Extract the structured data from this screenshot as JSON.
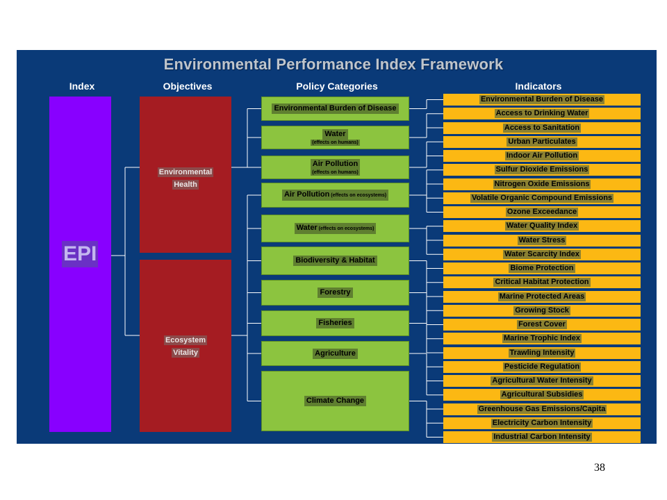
{
  "title": "Environmental Performance Index Framework",
  "headers": {
    "index": "Index",
    "objectives": "Objectives",
    "policy": "Policy Categories",
    "indicators": "Indicators"
  },
  "index_label": "EPI",
  "objectives": [
    {
      "line1": "Environmental",
      "line2": "Health"
    },
    {
      "line1": "Ecosystem",
      "line2": "Vitality"
    }
  ],
  "policy_categories": [
    {
      "main": "Environmental Burden of Disease",
      "sub": "",
      "inline": ""
    },
    {
      "main": "Water",
      "sub": "(effects on humans)",
      "inline": ""
    },
    {
      "main": "Air Pollution",
      "sub": "(effects on humans)",
      "inline": ""
    },
    {
      "main": "Air Pollution",
      "sub": "",
      "inline": "(effects on ecosystems)"
    },
    {
      "main": "Water",
      "sub": "",
      "inline": "(effects on ecosystems)"
    },
    {
      "main": "Biodiversity & Habitat",
      "sub": "",
      "inline": ""
    },
    {
      "main": "Forestry",
      "sub": "",
      "inline": ""
    },
    {
      "main": "Fisheries",
      "sub": "",
      "inline": ""
    },
    {
      "main": "Agriculture",
      "sub": "",
      "inline": ""
    },
    {
      "main": "Climate Change",
      "sub": "",
      "inline": ""
    }
  ],
  "indicators": [
    "Environmental Burden of Disease",
    "Access to Drinking Water",
    "Access to Sanitation",
    "Urban Particulates",
    "Indoor Air Pollution",
    "Sulfur Dioxide Emissions",
    "Nitrogen Oxide Emissions",
    "Volatile Organic Compound Emissions",
    "Ozone Exceedance",
    "Water Quality Index",
    "Water Stress",
    "Water Scarcity Index",
    "Biome Protection",
    "Critical Habitat Protection",
    "Marine Protected Areas",
    "Growing Stock",
    "Forest Cover",
    "Marine Trophic Index",
    "Trawling Intensity",
    "Pesticide Regulation",
    "Agricultural Water Intensity",
    "Agricultural Subsidies",
    "Greenhouse Gas Emissions/Capita",
    "Electricity Carbon Intensity",
    "Industrial Carbon Intensity"
  ],
  "page_number": "38",
  "colors": {
    "panel": "#0a3a78",
    "index": "#8800ff",
    "objective": "#a51c22",
    "policy": "#8cc43f",
    "indicator": "#fcb813",
    "connector": "#ffffff"
  }
}
